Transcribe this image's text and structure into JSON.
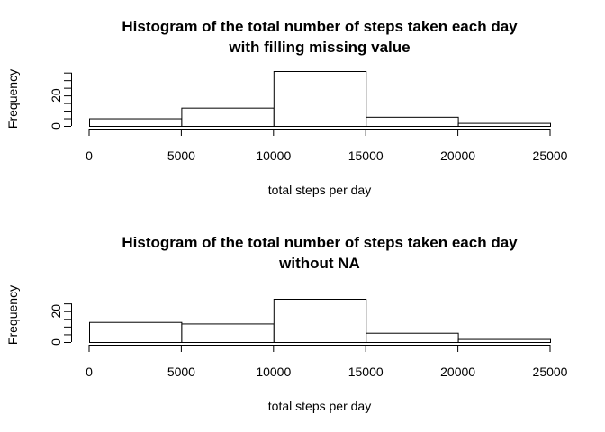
{
  "chart_data": [
    {
      "type": "bar",
      "title_line1": "Histogram of the total number of steps taken each day",
      "title_line2": "with filling missing value",
      "xlabel": "total steps per day",
      "ylabel": "Frequency",
      "bins": [
        [
          0,
          5000
        ],
        [
          5000,
          10000
        ],
        [
          10000,
          15000
        ],
        [
          15000,
          20000
        ],
        [
          20000,
          25000
        ]
      ],
      "values": [
        5,
        12,
        36,
        6,
        2
      ],
      "xlim": [
        0,
        25000
      ],
      "ylim": [
        0,
        36
      ],
      "xticks": [
        "0",
        "5000",
        "10000",
        "15000",
        "20000",
        "25000"
      ],
      "yticks": [
        "0",
        "20"
      ],
      "grid": false
    },
    {
      "type": "bar",
      "title_line1": "Histogram of the total number of steps taken each day",
      "title_line2": "without NA",
      "xlabel": "total steps per day",
      "ylabel": "Frequency",
      "bins": [
        [
          0,
          5000
        ],
        [
          5000,
          10000
        ],
        [
          10000,
          15000
        ],
        [
          15000,
          20000
        ],
        [
          20000,
          25000
        ]
      ],
      "values": [
        13,
        12,
        28,
        6,
        2
      ],
      "xlim": [
        0,
        25000
      ],
      "ylim": [
        0,
        28
      ],
      "xticks": [
        "0",
        "5000",
        "10000",
        "15000",
        "20000",
        "25000"
      ],
      "yticks": [
        "0",
        "20"
      ],
      "grid": false
    }
  ]
}
